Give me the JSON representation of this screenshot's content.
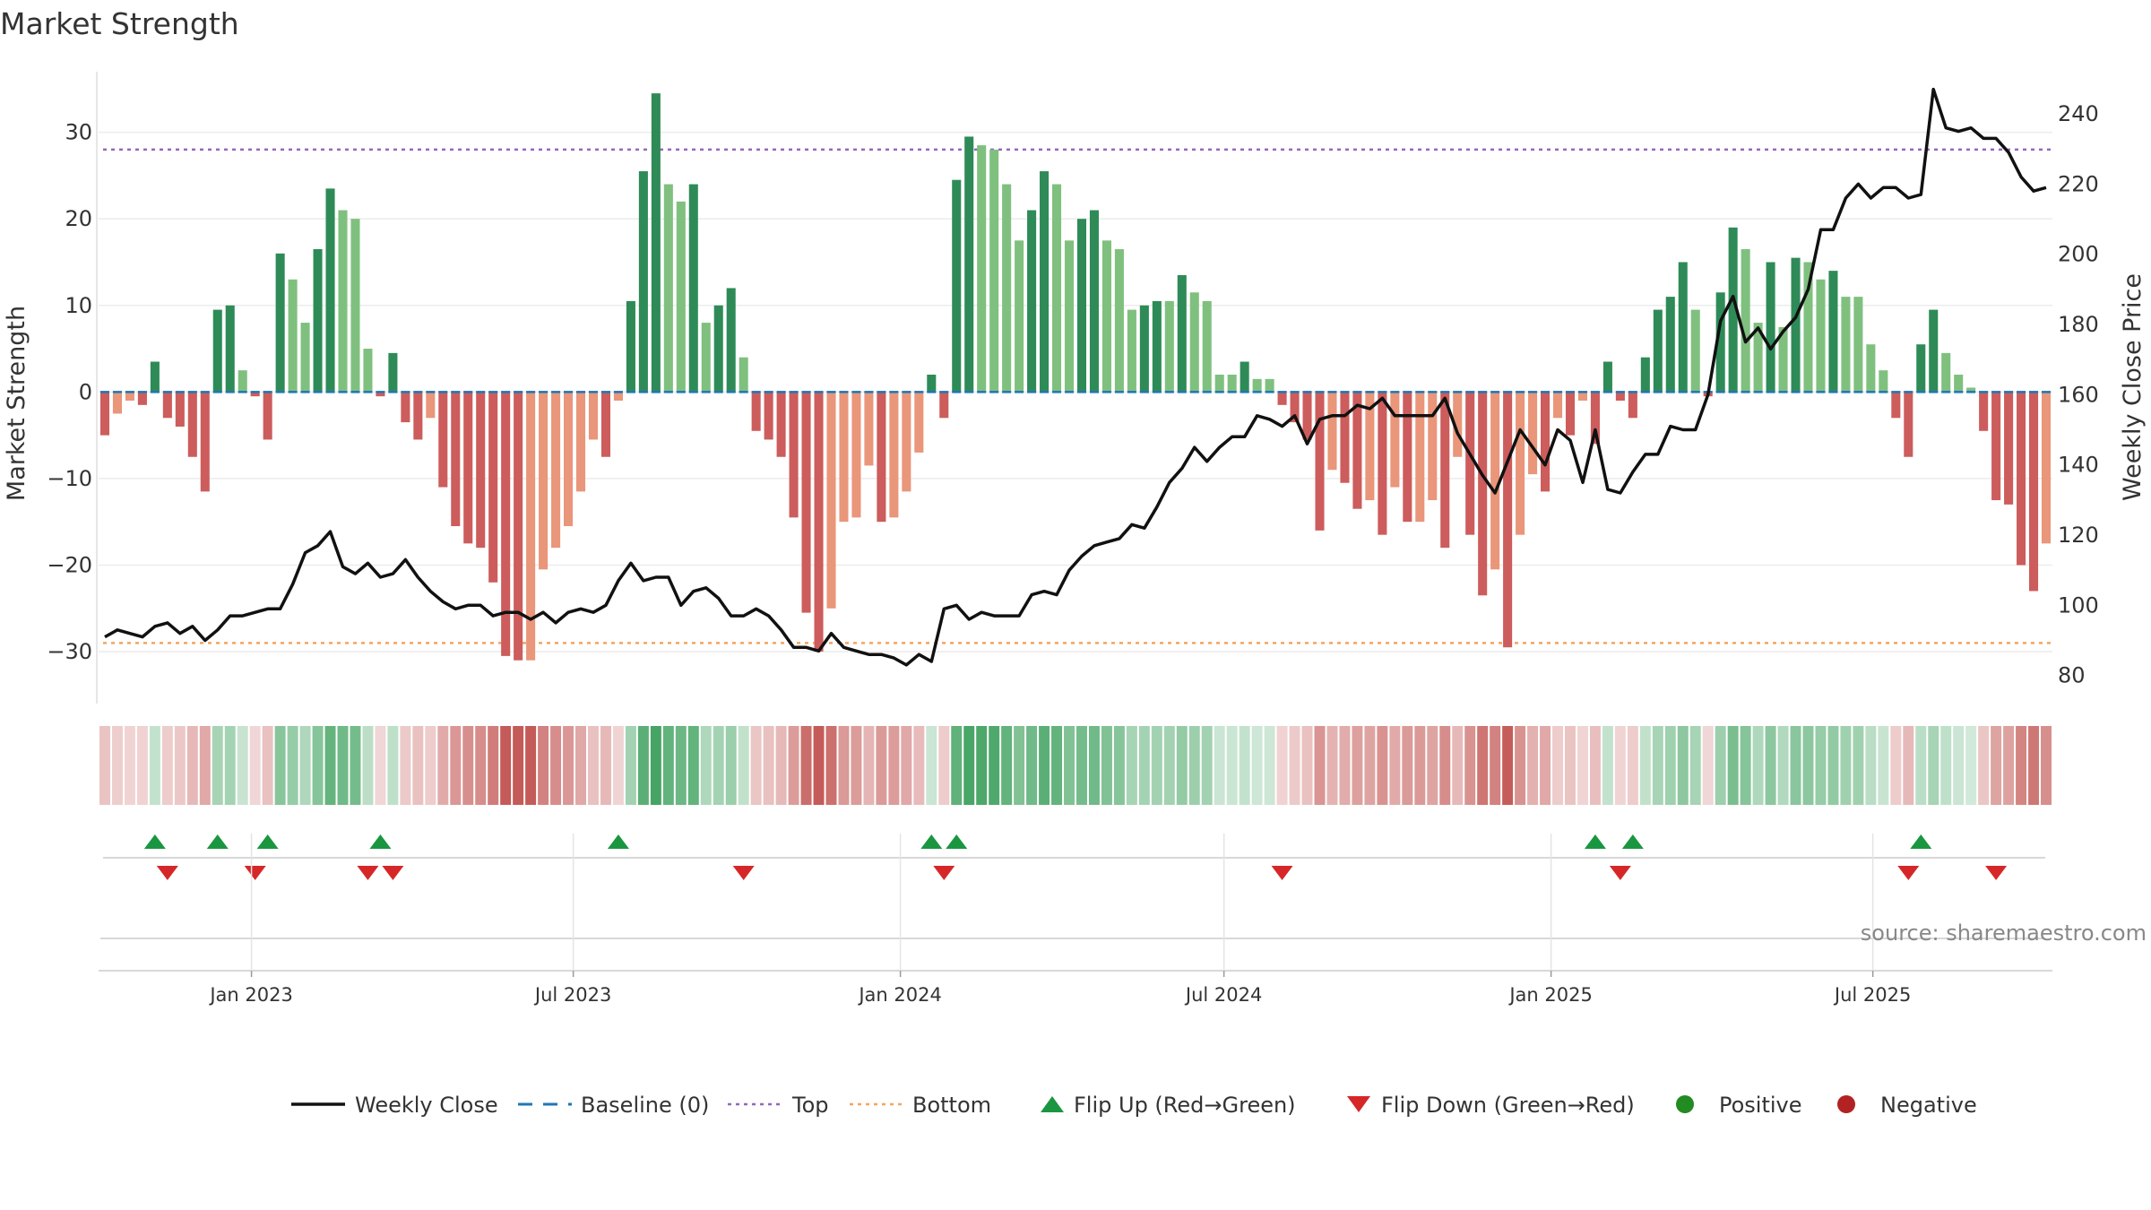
{
  "title": "Market Strength",
  "source": "source: sharemaestro.com",
  "colors": {
    "pos_dark": "#2e8b57",
    "pos_light": "#7fc07f",
    "neg_dark": "#cd5c5c",
    "neg_light": "#e9967a",
    "close": "#111111",
    "baseline": "#1f77b4",
    "top": "#9467bd",
    "bottom": "#f4a460",
    "flip_up": "#1a9641",
    "flip_down": "#d62728",
    "positive": "#228b22",
    "negative": "#b22222"
  },
  "chart_data": {
    "type": "bar",
    "title": "Market Strength",
    "ylabel_left": "Market Strength",
    "ylabel_right": "Weekly Close Price",
    "ylim_left": [
      -36,
      37
    ],
    "ylim_right": [
      72,
      252
    ],
    "left_ticks": [
      30,
      20,
      10,
      0,
      -10,
      -20,
      -30
    ],
    "left_tick_labels": [
      "30",
      "20",
      "10",
      "0",
      "−10",
      "−20",
      "−30"
    ],
    "right_ticks": [
      240,
      220,
      200,
      180,
      160,
      140,
      120,
      100,
      80
    ],
    "right_tick_labels": [
      "240",
      "220",
      "200",
      "180",
      "160",
      "140",
      "120",
      "100",
      "80"
    ],
    "x_start": "2022-10-07",
    "x_end": "2025-10-10",
    "date_ticks": [
      "2023-01-01",
      "2023-07-01",
      "2024-01-01",
      "2024-07-01",
      "2025-01-01",
      "2025-07-01"
    ],
    "date_tick_labels": [
      "Jan 2023",
      "Jul 2023",
      "Jan 2024",
      "Jul 2024",
      "Jan 2025",
      "Jul 2025"
    ],
    "top_level": 28,
    "bottom_level": -29,
    "grid": true,
    "legend_position": "bottom",
    "strength": [
      -5,
      -2.5,
      -1,
      -1.5,
      3.5,
      -3,
      -4,
      -7.5,
      -11.5,
      9.5,
      10,
      2.5,
      -0.5,
      -5.5,
      16,
      13,
      8,
      16.5,
      23.5,
      21,
      20,
      5,
      -0.5,
      4.5,
      -3.5,
      -5.5,
      -3,
      -11,
      -15.5,
      -17.5,
      -18,
      -22,
      -30.5,
      -31,
      -31,
      -20.5,
      -18,
      -15.5,
      -11.5,
      -5.5,
      -7.5,
      -1,
      10.5,
      25.5,
      34.5,
      24,
      22,
      24,
      8,
      10,
      12,
      4,
      -4.5,
      -5.5,
      -7.5,
      -14.5,
      -25.5,
      -30,
      -25,
      -15,
      -14.5,
      -8.5,
      -15,
      -14.5,
      -11.5,
      -7,
      2,
      -3,
      24.5,
      29.5,
      28.5,
      28,
      24,
      17.5,
      21,
      25.5,
      24,
      17.5,
      20,
      21,
      17.5,
      16.5,
      9.5,
      10,
      10.5,
      10.5,
      13.5,
      11.5,
      10.5,
      2,
      2,
      3.5,
      1.5,
      1.5,
      -1.5,
      -3.5,
      -5.5,
      -16,
      -9,
      -10.5,
      -13.5,
      -12.5,
      -16.5,
      -11,
      -15,
      -15,
      -12.5,
      -18,
      -7.5,
      -16.5,
      -23.5,
      -20.5,
      -29.5,
      -16.5,
      -9.5,
      -11.5,
      -3,
      -5,
      -1,
      -6,
      3.5,
      -1,
      -3,
      4,
      9.5,
      11,
      15,
      9.5,
      -0.5,
      11.5,
      19,
      16.5,
      8,
      15,
      7.5,
      15.5,
      15,
      13,
      14,
      11,
      11,
      5.5,
      2.5,
      -3,
      -7.5,
      5.5,
      9.5,
      4.5,
      2,
      0.5,
      -4.5,
      -12.5,
      -13,
      -20,
      -23,
      -17.5
    ],
    "close": [
      91,
      93,
      92,
      91,
      94,
      95,
      92,
      94,
      90,
      93,
      97,
      97,
      98,
      99,
      99,
      106,
      115,
      117,
      121,
      111,
      109,
      112,
      108,
      109,
      113,
      108,
      104,
      101,
      99,
      100,
      100,
      97,
      98,
      98,
      96,
      98,
      95,
      98,
      99,
      98,
      100,
      107,
      112,
      107,
      108,
      108,
      100,
      104,
      105,
      102,
      97,
      97,
      99,
      97,
      93,
      88,
      88,
      87,
      92,
      88,
      87,
      86,
      86,
      85,
      83,
      86,
      84,
      99,
      100,
      96,
      98,
      97,
      97,
      97,
      103,
      104,
      103,
      110,
      114,
      117,
      118,
      119,
      123,
      122,
      128,
      135,
      139,
      145,
      141,
      145,
      148,
      148,
      154,
      153,
      151,
      154,
      146,
      153,
      154,
      154,
      157,
      156,
      159,
      154,
      154,
      154,
      154,
      159,
      149,
      143,
      137,
      132,
      141,
      150,
      145,
      140,
      150,
      147,
      135,
      150,
      133,
      132,
      138,
      143,
      143,
      151,
      150,
      150,
      160,
      181,
      188,
      175,
      179,
      173,
      178,
      182,
      190,
      207,
      207,
      216,
      220,
      216,
      219,
      219,
      216,
      217,
      247,
      236,
      235,
      236,
      233,
      233,
      229,
      222,
      218,
      219
    ],
    "flip_up_weeks": [
      4,
      9,
      13,
      22,
      41,
      66,
      68,
      119,
      122,
      145
    ],
    "flip_down_weeks": [
      5,
      12,
      21,
      23,
      51,
      67,
      94,
      121,
      144,
      151
    ],
    "legend": [
      "Weekly Close",
      "Baseline (0)",
      "Top",
      "Bottom",
      "Flip Up (Red→Green)",
      "Flip Down (Green→Red)",
      "Positive",
      "Negative"
    ]
  }
}
